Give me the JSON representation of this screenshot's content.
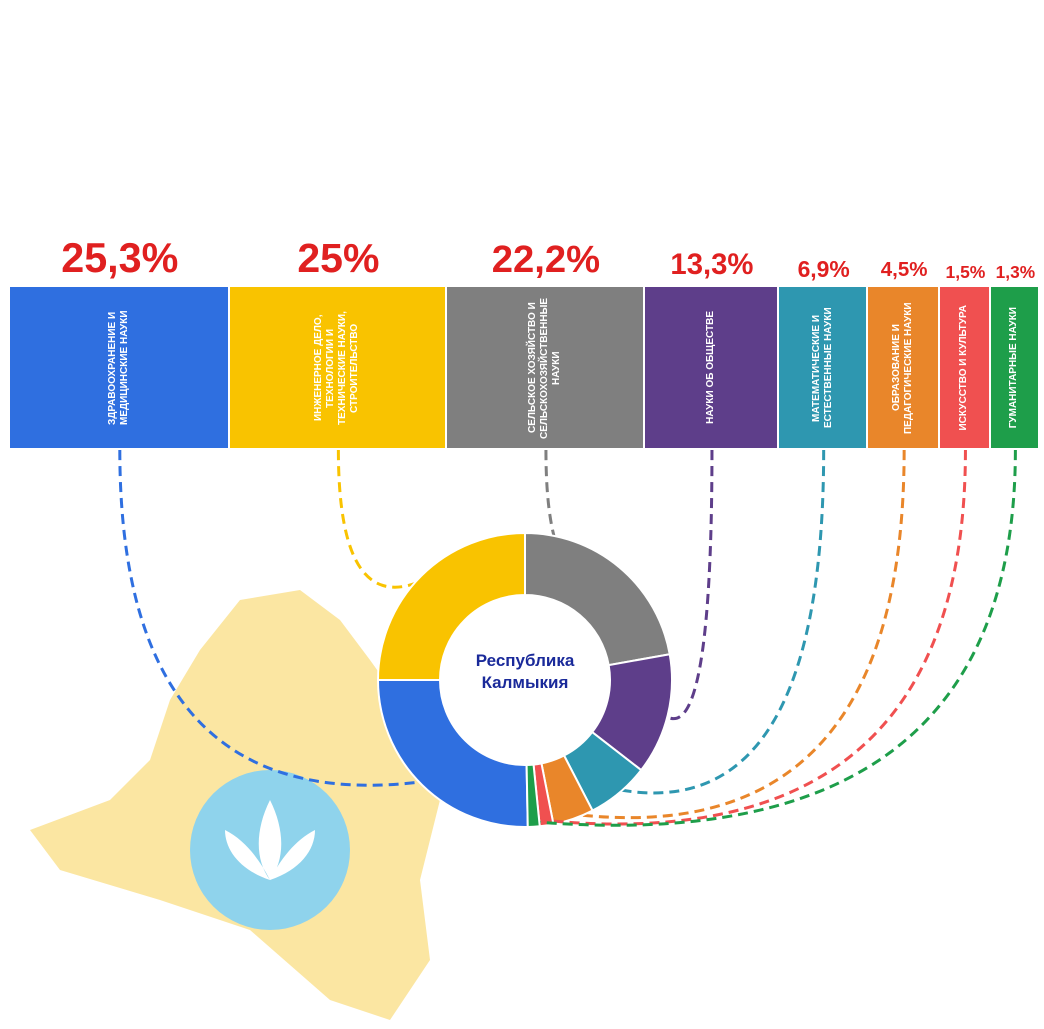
{
  "chart_data": {
    "type": "pie",
    "donut": true,
    "center_label": "Республика Калмыкия",
    "categories": [
      "Здравоохранение и медицинские науки",
      "Инженерное дело, технологии и технические науки, строительство",
      "Сельское хозяйство и сельскохозяйственные науки",
      "Науки об обществе",
      "Математические и естественные науки",
      "Образование и педагогические науки",
      "Искусство и культура",
      "Гуманитарные науки"
    ],
    "values": [
      25.3,
      25,
      22.2,
      13.3,
      6.9,
      4.5,
      1.5,
      1.3
    ],
    "value_labels": [
      "25,3%",
      "25%",
      "22,2%",
      "13,3%",
      "6,9%",
      "4,5%",
      "1,5%",
      "1,3%"
    ],
    "colors": [
      "#2f6fe0",
      "#f9c300",
      "#7f7f7f",
      "#5e3e8a",
      "#2e97b0",
      "#e9862a",
      "#f05050",
      "#1e9e4a"
    ]
  }
}
